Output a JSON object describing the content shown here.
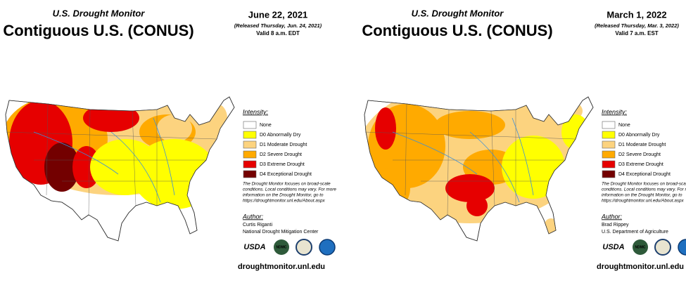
{
  "panels": [
    {
      "heading": "U.S. Drought Monitor",
      "title": "Contiguous U.S. (CONUS)",
      "date": "June 22, 2021",
      "released": "(Released Thursday, Jun. 24, 2021)",
      "valid": "Valid 8 a.m. EDT",
      "legend": {
        "heading": "Intensity:",
        "items": [
          {
            "label": "None",
            "color": "#ffffff"
          },
          {
            "label": "D0 Abnormally Dry",
            "color": "#ffff00"
          },
          {
            "label": "D1 Moderate Drought",
            "color": "#fcd37f"
          },
          {
            "label": "D2 Severe Drought",
            "color": "#ffaa00"
          },
          {
            "label": "D3 Extreme Drought",
            "color": "#e60000"
          },
          {
            "label": "D4 Exceptional Drought",
            "color": "#730000"
          }
        ]
      },
      "note_lines": [
        "The Drought Monitor focuses on broad-scale",
        "conditions. Local conditions may vary. For more",
        "information on the Drought Monitor, go to",
        "https://droughtmonitor.unl.edu/About.aspx"
      ],
      "author_heading": "Author:",
      "author": "Curtis Riganti",
      "organization": "National Drought Mitigation Center",
      "logos": [
        "USDA",
        "NDMC"
      ],
      "url": "droughtmonitor.unl.edu"
    },
    {
      "heading": "U.S. Drought Monitor",
      "title": "Contiguous U.S. (CONUS)",
      "date": "March 1, 2022",
      "released": "(Released Thursday, Mar. 3, 2022)",
      "valid": "Valid 7 a.m. EST",
      "legend": {
        "heading": "Intensity:",
        "items": [
          {
            "label": "None",
            "color": "#ffffff"
          },
          {
            "label": "D0 Abnormally Dry",
            "color": "#ffff00"
          },
          {
            "label": "D1 Moderate Drought",
            "color": "#fcd37f"
          },
          {
            "label": "D2 Severe Drought",
            "color": "#ffaa00"
          },
          {
            "label": "D3 Extreme Drought",
            "color": "#e60000"
          },
          {
            "label": "D4 Exceptional Drought",
            "color": "#730000"
          }
        ]
      },
      "note_lines": [
        "The Drought Monitor focuses on broad-scale",
        "conditions. Local conditions may vary. For more",
        "information on the Drought Monitor, go to",
        "https://droughtmonitor.unl.edu/About.aspx"
      ],
      "author_heading": "Author:",
      "author": "Brad Rippey",
      "organization": "U.S. Department of Agriculture",
      "logos": [
        "USDA",
        "NDMC"
      ],
      "url": "droughtmonitor.unl.edu"
    }
  ]
}
